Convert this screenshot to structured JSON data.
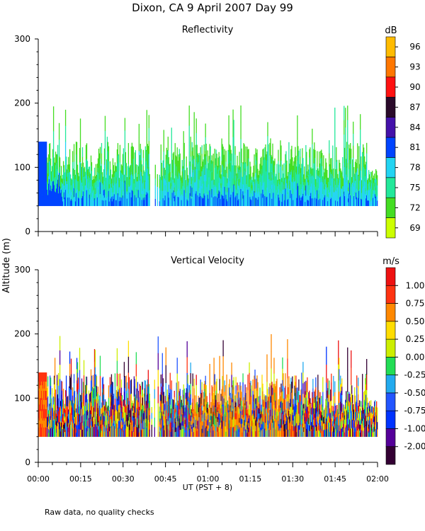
{
  "title": "Dixon, CA  9 April 2007   Day  99",
  "footer_note": "Raw data, no quality checks",
  "colors": {
    "reflectivity_scale": [
      "#ccff00",
      "#44dd22",
      "#22e89a",
      "#22d4f2",
      "#0044ff",
      "#4411aa",
      "#2a0a2a",
      "#ff1111",
      "#ff7700",
      "#ffbb00"
    ],
    "velocity_scale": [
      "#330033",
      "#550099",
      "#0033ff",
      "#2255ff",
      "#22aaee",
      "#22dd55",
      "#ccee00",
      "#ffdd00",
      "#ff8800",
      "#ff3311",
      "#ee1111"
    ]
  },
  "chart_data": [
    {
      "type": "heatmap",
      "panel": "top",
      "title": "Reflectivity",
      "unit": "dB",
      "ylabel": "Altitude (m)",
      "ylim": [
        0,
        300
      ],
      "yticks": [
        "0",
        "100",
        "200",
        "300"
      ],
      "xlim_label": [
        "00:00",
        "02:00"
      ],
      "colorbar_labels": [
        "69",
        "72",
        "75",
        "78",
        "81",
        "84",
        "87",
        "90",
        "93",
        "96"
      ],
      "echo_base_m": 40,
      "typical_echo_top_m": [
        80,
        140
      ],
      "max_echo_top_m": 200
    },
    {
      "type": "heatmap",
      "panel": "bottom",
      "title": "Vertical Velocity",
      "unit": "m/s",
      "ylabel": "Altitude (m)",
      "ylim": [
        0,
        300
      ],
      "yticks": [
        "0",
        "100",
        "200",
        "300"
      ],
      "xticks": [
        "00:00",
        "00:15",
        "00:30",
        "00:45",
        "01:00",
        "01:15",
        "01:30",
        "01:45",
        "02:00"
      ],
      "xlabel": "UT   (PST + 8)",
      "colorbar_labels": [
        "-2.00",
        "-1.00",
        "-0.75",
        "-0.50",
        "-0.25",
        "0.00",
        "0.25",
        "0.50",
        "0.75",
        "1.00"
      ],
      "echo_base_m": 40,
      "max_echo_top_m": 200
    }
  ]
}
